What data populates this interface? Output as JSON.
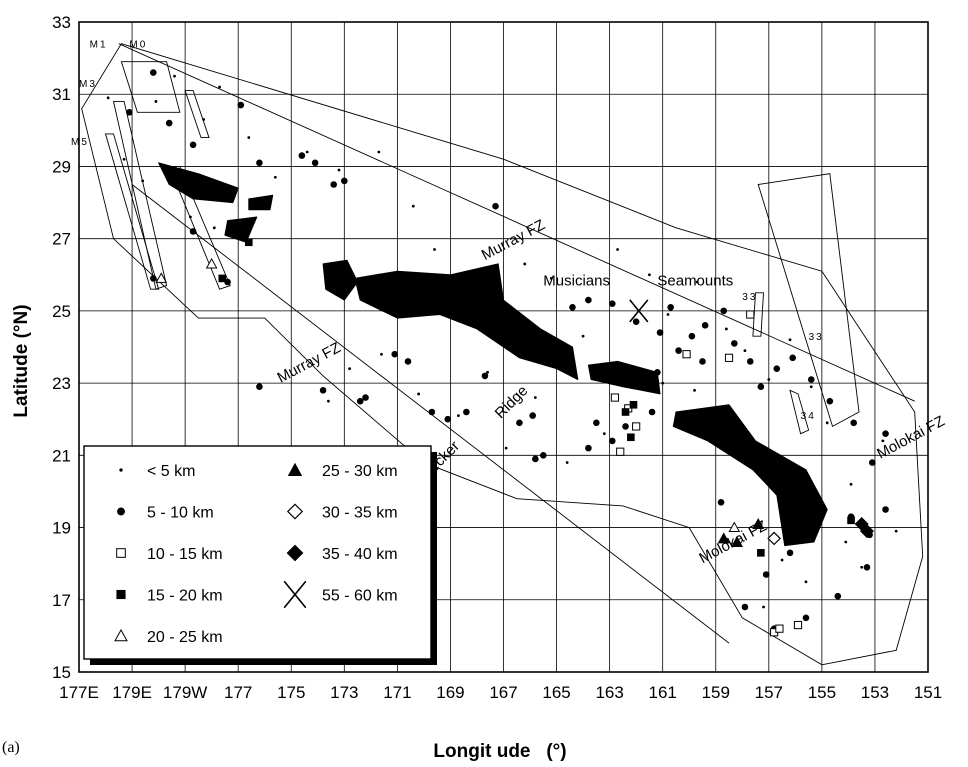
{
  "chart_data": {
    "type": "scatter",
    "xlabel": "Longit ude   (°)",
    "ylabel": "Latitude (°N)",
    "xlim": [
      177,
      209
    ],
    "ylim": [
      15,
      33
    ],
    "x_tick_labels": [
      "177E",
      "179E",
      "179W",
      "177",
      "175",
      "173",
      "171",
      "169",
      "167",
      "165",
      "163",
      "161",
      "159",
      "157",
      "155",
      "153",
      "151"
    ],
    "x_tick_values": [
      177,
      179,
      181,
      183,
      185,
      187,
      189,
      191,
      193,
      195,
      197,
      199,
      201,
      203,
      205,
      207,
      209
    ],
    "y_ticks": [
      15,
      17,
      19,
      21,
      23,
      25,
      27,
      29,
      31,
      33
    ],
    "grid": true,
    "panel_label": "(a)",
    "annotations": [
      {
        "text": "Murray FZ",
        "lon": 192.3,
        "lat": 26.4,
        "rotate": -28
      },
      {
        "text": "Murray FZ",
        "lon": 184.6,
        "lat": 23.0,
        "rotate": -28
      },
      {
        "text": "Musicians",
        "lon": 194.5,
        "lat": 25.7
      },
      {
        "text": "Seamounts",
        "lon": 198.8,
        "lat": 25.7
      },
      {
        "text": "Necker",
        "lon": 190.1,
        "lat": 20.3,
        "rotate": -45
      },
      {
        "text": "Ridge",
        "lon": 192.9,
        "lat": 22.0,
        "rotate": -45
      },
      {
        "text": "Molokai FZ",
        "lon": 200.5,
        "lat": 18.0,
        "rotate": -28
      },
      {
        "text": "Molokai FZ",
        "lon": 207.2,
        "lat": 20.9,
        "rotate": -28
      },
      {
        "text": "M1",
        "lon": 177.4,
        "lat": 32.3,
        "small": true
      },
      {
        "text": "M0",
        "lon": 178.9,
        "lat": 32.3,
        "small": true
      },
      {
        "text": "M3",
        "lon": 177.0,
        "lat": 31.2,
        "small": true
      },
      {
        "text": "M5",
        "lon": 176.7,
        "lat": 29.6,
        "small": true
      },
      {
        "text": "33",
        "lon": 204.5,
        "lat": 24.2,
        "small": true
      },
      {
        "text": "34",
        "lon": 204.2,
        "lat": 22.0,
        "small": true
      },
      {
        "text": "33",
        "lon": 202.0,
        "lat": 25.3,
        "small": true
      }
    ],
    "legend": {
      "placement": "bottom-left",
      "entries": [
        {
          "label": "< 5 km",
          "marker": "dot"
        },
        {
          "label": "5 - 10 km",
          "marker": "circle-filled"
        },
        {
          "label": "10 - 15 km",
          "marker": "square-open"
        },
        {
          "label": "15 - 20 km",
          "marker": "square-filled"
        },
        {
          "label": "20 - 25 km",
          "marker": "triangle-open"
        },
        {
          "label": "25 - 30 km",
          "marker": "triangle-filled"
        },
        {
          "label": "30 - 35 km",
          "marker": "diamond-open"
        },
        {
          "label": "35 - 40 km",
          "marker": "diamond-filled"
        },
        {
          "label": "55 - 60 km",
          "marker": "cross"
        }
      ]
    },
    "series": [
      {
        "marker": "dot",
        "points": [
          [
            178.1,
            30.9
          ],
          [
            178.7,
            29.2
          ],
          [
            179.9,
            30.8
          ],
          [
            180.6,
            31.5
          ],
          [
            181.7,
            30.3
          ],
          [
            182.3,
            31.2
          ],
          [
            183.4,
            29.8
          ],
          [
            184.4,
            28.7
          ],
          [
            185.6,
            29.4
          ],
          [
            186.8,
            28.9
          ],
          [
            188.3,
            29.4
          ],
          [
            189.6,
            27.9
          ],
          [
            190.4,
            26.7
          ],
          [
            193.8,
            26.3
          ],
          [
            194.8,
            25.9
          ],
          [
            196.0,
            24.3
          ],
          [
            197.3,
            26.7
          ],
          [
            198.5,
            26.0
          ],
          [
            199.2,
            24.9
          ],
          [
            200.3,
            25.8
          ],
          [
            201.4,
            24.5
          ],
          [
            202.1,
            23.9
          ],
          [
            203.0,
            23.1
          ],
          [
            203.8,
            24.2
          ],
          [
            204.6,
            22.9
          ],
          [
            205.2,
            21.9
          ],
          [
            206.1,
            20.2
          ],
          [
            207.3,
            21.4
          ],
          [
            205.9,
            18.6
          ],
          [
            204.4,
            17.5
          ],
          [
            202.8,
            16.8
          ],
          [
            203.5,
            18.1
          ],
          [
            206.5,
            17.9
          ],
          [
            207.8,
            18.9
          ],
          [
            201.4,
            21.6
          ],
          [
            200.2,
            22.8
          ],
          [
            199.0,
            23.0
          ],
          [
            197.9,
            23.4
          ],
          [
            196.8,
            21.6
          ],
          [
            195.4,
            20.8
          ],
          [
            194.2,
            22.6
          ],
          [
            193.1,
            21.2
          ],
          [
            192.4,
            23.3
          ],
          [
            191.3,
            22.1
          ],
          [
            189.8,
            22.7
          ],
          [
            188.4,
            23.8
          ],
          [
            187.2,
            23.4
          ],
          [
            186.4,
            22.5
          ],
          [
            182.1,
            27.3
          ],
          [
            181.2,
            27.6
          ],
          [
            179.4,
            28.6
          ],
          [
            180.8,
            28.4
          ]
        ]
      },
      {
        "marker": "circle-filled",
        "points": [
          [
            179.8,
            31.6
          ],
          [
            178.9,
            30.5
          ],
          [
            180.4,
            30.2
          ],
          [
            181.3,
            29.6
          ],
          [
            181.9,
            28.6
          ],
          [
            183.1,
            30.7
          ],
          [
            183.8,
            29.1
          ],
          [
            185.4,
            29.3
          ],
          [
            185.9,
            29.1
          ],
          [
            186.6,
            28.5
          ],
          [
            187.0,
            28.6
          ],
          [
            182.6,
            25.8
          ],
          [
            179.8,
            25.9
          ],
          [
            181.3,
            27.2
          ],
          [
            189.4,
            23.6
          ],
          [
            188.9,
            23.8
          ],
          [
            187.6,
            22.5
          ],
          [
            186.2,
            22.8
          ],
          [
            190.3,
            22.2
          ],
          [
            190.9,
            22.0
          ],
          [
            191.6,
            22.2
          ],
          [
            192.3,
            23.2
          ],
          [
            193.6,
            21.9
          ],
          [
            194.1,
            22.1
          ],
          [
            194.5,
            21.0
          ],
          [
            194.2,
            20.9
          ],
          [
            196.2,
            21.2
          ],
          [
            196.5,
            21.9
          ],
          [
            197.1,
            21.4
          ],
          [
            197.6,
            21.8
          ],
          [
            198.6,
            22.2
          ],
          [
            195.6,
            25.1
          ],
          [
            196.2,
            25.3
          ],
          [
            197.1,
            25.2
          ],
          [
            198.0,
            24.7
          ],
          [
            198.9,
            24.4
          ],
          [
            199.3,
            25.1
          ],
          [
            200.1,
            24.3
          ],
          [
            200.6,
            24.6
          ],
          [
            201.3,
            25.0
          ],
          [
            201.7,
            24.1
          ],
          [
            202.3,
            23.6
          ],
          [
            202.7,
            22.9
          ],
          [
            203.3,
            23.4
          ],
          [
            203.9,
            23.7
          ],
          [
            204.6,
            23.1
          ],
          [
            205.3,
            22.5
          ],
          [
            206.2,
            21.9
          ],
          [
            206.9,
            20.8
          ],
          [
            207.4,
            21.6
          ],
          [
            206.1,
            19.3
          ],
          [
            206.8,
            18.8
          ],
          [
            207.4,
            19.5
          ],
          [
            206.7,
            17.9
          ],
          [
            205.6,
            17.1
          ],
          [
            204.4,
            16.5
          ],
          [
            203.2,
            16.2
          ],
          [
            202.1,
            16.8
          ],
          [
            202.9,
            17.7
          ],
          [
            203.8,
            18.3
          ],
          [
            201.2,
            19.7
          ],
          [
            200.5,
            23.6
          ],
          [
            199.6,
            23.9
          ],
          [
            198.8,
            23.3
          ],
          [
            192.7,
            27.9
          ],
          [
            192.9,
            24.6
          ],
          [
            183.8,
            22.9
          ],
          [
            187.8,
            22.6
          ]
        ]
      },
      {
        "marker": "square-open",
        "points": [
          [
            197.2,
            22.6
          ],
          [
            197.7,
            22.3
          ],
          [
            198.0,
            21.8
          ],
          [
            197.4,
            21.1
          ],
          [
            199.9,
            23.8
          ],
          [
            201.5,
            23.7
          ],
          [
            202.3,
            24.9
          ],
          [
            203.2,
            16.1
          ],
          [
            204.1,
            16.3
          ],
          [
            203.4,
            16.2
          ]
        ]
      },
      {
        "marker": "square-filled",
        "points": [
          [
            182.4,
            25.9
          ],
          [
            183.4,
            26.9
          ],
          [
            197.9,
            22.4
          ],
          [
            197.6,
            22.2
          ],
          [
            197.8,
            21.5
          ],
          [
            202.7,
            18.3
          ],
          [
            206.1,
            19.2
          ]
        ]
      },
      {
        "marker": "triangle-open",
        "points": [
          [
            180.1,
            25.9
          ],
          [
            182.0,
            26.3
          ],
          [
            201.7,
            19.0
          ]
        ]
      },
      {
        "marker": "triangle-filled",
        "points": [
          [
            201.3,
            18.7
          ],
          [
            201.8,
            18.6
          ],
          [
            202.6,
            19.1
          ]
        ]
      },
      {
        "marker": "diamond-open",
        "points": [
          [
            203.2,
            18.7
          ]
        ]
      },
      {
        "marker": "diamond-filled",
        "points": [
          [
            206.5,
            19.1
          ],
          [
            206.7,
            18.9
          ]
        ]
      },
      {
        "marker": "cross",
        "points": [
          [
            198.1,
            25.0
          ]
        ]
      }
    ]
  }
}
